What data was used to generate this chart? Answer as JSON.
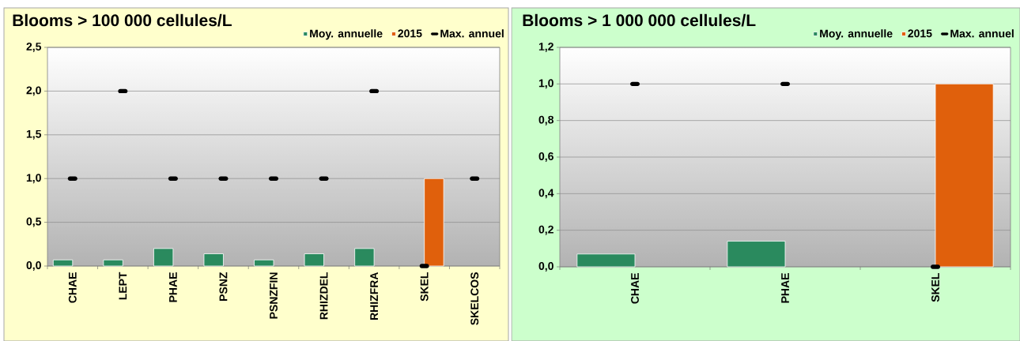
{
  "chart_data": [
    {
      "type": "bar",
      "title": "Blooms > 100 000 cellules/L",
      "categories": [
        "CHAE",
        "LEPT",
        "PHAE",
        "PSNZ",
        "PSNZFIN",
        "RHIZDEL",
        "RHIZFRA",
        "SKEL",
        "SKELCOS"
      ],
      "series": [
        {
          "name": "Moy. annuelle",
          "color": "#2a8a5e",
          "values": [
            0.07,
            0.07,
            0.2,
            0.14,
            0.07,
            0.14,
            0.2,
            null,
            null
          ]
        },
        {
          "name": "2015",
          "color": "#e0600c",
          "values": [
            null,
            null,
            null,
            null,
            null,
            null,
            null,
            1,
            null
          ]
        },
        {
          "name": "Max. annuel",
          "type": "scatter",
          "color": "#000000",
          "values": [
            1,
            2,
            1,
            1,
            1,
            1,
            2,
            0,
            1
          ]
        }
      ],
      "ylim": [
        0,
        2.5
      ],
      "yticks": [
        {
          "value": 0,
          "label": "0,0"
        },
        {
          "value": 0.5,
          "label": "0,5"
        },
        {
          "value": 1,
          "label": "1,0"
        },
        {
          "value": 1.5,
          "label": "1,5"
        },
        {
          "value": 2,
          "label": "2,0"
        },
        {
          "value": 2.5,
          "label": "2,5"
        }
      ],
      "grid": "y",
      "legend": "top right"
    },
    {
      "type": "bar",
      "title": "Blooms > 1 000 000 cellules/L",
      "categories": [
        "CHAE",
        "PHAE",
        "SKEL"
      ],
      "series": [
        {
          "name": "Moy. annuelle",
          "color": "#2a8a5e",
          "values": [
            0.07,
            0.14,
            null
          ]
        },
        {
          "name": "2015",
          "color": "#e0600c",
          "values": [
            null,
            null,
            1
          ]
        },
        {
          "name": "Max. annuel",
          "type": "scatter",
          "color": "#000000",
          "values": [
            1,
            1,
            0
          ]
        }
      ],
      "ylim": [
        0,
        1.2
      ],
      "yticks": [
        {
          "value": 0,
          "label": "0,0"
        },
        {
          "value": 0.2,
          "label": "0,2"
        },
        {
          "value": 0.4,
          "label": "0,4"
        },
        {
          "value": 0.6,
          "label": "0,6"
        },
        {
          "value": 0.8,
          "label": "0,8"
        },
        {
          "value": 1,
          "label": "1,0"
        },
        {
          "value": 1.2,
          "label": "1,2"
        }
      ],
      "grid": "y",
      "legend": "top right"
    }
  ]
}
